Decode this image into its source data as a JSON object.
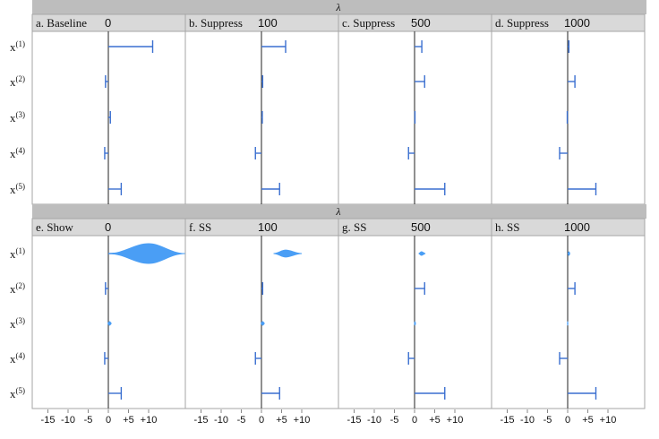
{
  "chart_data": {
    "type": "horizontal error bars and violins",
    "lambda_label": "λ",
    "rows": [
      {
        "strip_label": "λ",
        "mark": "errorbar",
        "panels": [
          {
            "title": "a. Baseline",
            "value": "0",
            "bars": [
              {
                "label": "x(1)",
                "from": 0,
                "to": 11
              },
              {
                "label": "x(2)",
                "from": -0.7,
                "to": 0
              },
              {
                "label": "x(3)",
                "from": 0,
                "to": 0.5
              },
              {
                "label": "x(4)",
                "from": -0.9,
                "to": 0
              },
              {
                "label": "x(5)",
                "from": 0,
                "to": 3.2
              }
            ]
          },
          {
            "title": "b. Suppress",
            "value": "100",
            "bars": [
              {
                "label": "x(1)",
                "from": 0,
                "to": 6
              },
              {
                "label": "x(2)",
                "from": 0,
                "to": 0.3
              },
              {
                "label": "x(3)",
                "from": 0,
                "to": 0.2
              },
              {
                "label": "x(4)",
                "from": -1.5,
                "to": 0
              },
              {
                "label": "x(5)",
                "from": 0,
                "to": 4.5
              }
            ]
          },
          {
            "title": "c. Suppress",
            "value": "500",
            "bars": [
              {
                "label": "x(1)",
                "from": 0,
                "to": 1.8
              },
              {
                "label": "x(2)",
                "from": 0,
                "to": 2.5
              },
              {
                "label": "x(3)",
                "from": 0,
                "to": 0.1
              },
              {
                "label": "x(4)",
                "from": -1.5,
                "to": 0
              },
              {
                "label": "x(5)",
                "from": 0,
                "to": 7.5
              }
            ]
          },
          {
            "title": "d. Suppress",
            "value": "1000",
            "bars": [
              {
                "label": "x(1)",
                "from": 0,
                "to": 0.3
              },
              {
                "label": "x(2)",
                "from": 0,
                "to": 1.8
              },
              {
                "label": "x(3)",
                "from": -0.1,
                "to": 0
              },
              {
                "label": "x(4)",
                "from": -2,
                "to": 0
              },
              {
                "label": "x(5)",
                "from": 0,
                "to": 7
              }
            ]
          }
        ]
      },
      {
        "strip_label": "λ",
        "mark": "violin",
        "panels": [
          {
            "title": "e. Show",
            "value": "0",
            "bars": [
              {
                "label": "x(1)",
                "kind": "violin",
                "from": 0,
                "to": 19,
                "center": 10,
                "halfwidth": 10,
                "tail_to": 3
              },
              {
                "label": "x(2)",
                "kind": "errorbar",
                "from": -0.7,
                "to": 0
              },
              {
                "label": "x(3)",
                "kind": "violin",
                "from": -0.2,
                "to": 0.8,
                "center": 0.3,
                "halfwidth": 0.7
              },
              {
                "label": "x(4)",
                "kind": "errorbar",
                "from": -0.9,
                "to": 0
              },
              {
                "label": "x(5)",
                "kind": "errorbar",
                "from": 0,
                "to": 3.2
              }
            ]
          },
          {
            "title": "f. SS",
            "value": "100",
            "bars": [
              {
                "label": "x(1)",
                "kind": "violin",
                "from": 3,
                "to": 10,
                "center": 6,
                "halfwidth": 3.5
              },
              {
                "label": "x(2)",
                "kind": "errorbar",
                "from": 0,
                "to": 0.3
              },
              {
                "label": "x(3)",
                "kind": "violin",
                "from": -0.2,
                "to": 0.8,
                "center": 0.3,
                "halfwidth": 0.7
              },
              {
                "label": "x(4)",
                "kind": "errorbar",
                "from": -1.5,
                "to": 0
              },
              {
                "label": "x(5)",
                "kind": "errorbar",
                "from": 0,
                "to": 4.5
              }
            ]
          },
          {
            "title": "g. SS",
            "value": "500",
            "bars": [
              {
                "label": "x(1)",
                "kind": "violin",
                "from": 1,
                "to": 2.7,
                "center": 1.7,
                "halfwidth": 0.8
              },
              {
                "label": "x(2)",
                "kind": "errorbar",
                "from": 0,
                "to": 2.5
              },
              {
                "label": "x(3)",
                "kind": "violin",
                "from": -0.1,
                "to": 0.3,
                "center": 0.1,
                "halfwidth": 0.25
              },
              {
                "label": "x(4)",
                "kind": "errorbar",
                "from": -1.5,
                "to": 0
              },
              {
                "label": "x(5)",
                "kind": "errorbar",
                "from": 0,
                "to": 7.5
              }
            ]
          },
          {
            "title": "h. SS",
            "value": "1000",
            "bars": [
              {
                "label": "x(1)",
                "kind": "violin",
                "from": 0,
                "to": 0.6,
                "center": 0.3,
                "halfwidth": 0.35
              },
              {
                "label": "x(2)",
                "kind": "errorbar",
                "from": 0,
                "to": 1.8
              },
              {
                "label": "x(3)",
                "kind": "violin",
                "from": -0.1,
                "to": 0.1,
                "center": 0,
                "halfwidth": 0.1
              },
              {
                "label": "x(4)",
                "kind": "errorbar",
                "from": -2,
                "to": 0
              },
              {
                "label": "x(5)",
                "kind": "errorbar",
                "from": 0,
                "to": 7
              }
            ]
          }
        ]
      }
    ],
    "y_labels": [
      {
        "base": "x",
        "sup": "(1)"
      },
      {
        "base": "x",
        "sup": "(2)"
      },
      {
        "base": "x",
        "sup": "(3)"
      },
      {
        "base": "x",
        "sup": "(4)"
      },
      {
        "base": "x",
        "sup": "(5)"
      }
    ],
    "x_ticks": [
      "-15",
      "-10",
      "-5",
      "0",
      "+5",
      "+10"
    ],
    "x_tick_values": [
      -15,
      -10,
      -5,
      0,
      5,
      10
    ],
    "xlim": [
      -18,
      19
    ],
    "colors": {
      "series": "#3a6fd0",
      "violin_fill": "#4a9ef5",
      "strip_top": "#bdbdbd",
      "strip_panel": "#d9d9d9",
      "panel_border": "#a6a6a6"
    }
  }
}
